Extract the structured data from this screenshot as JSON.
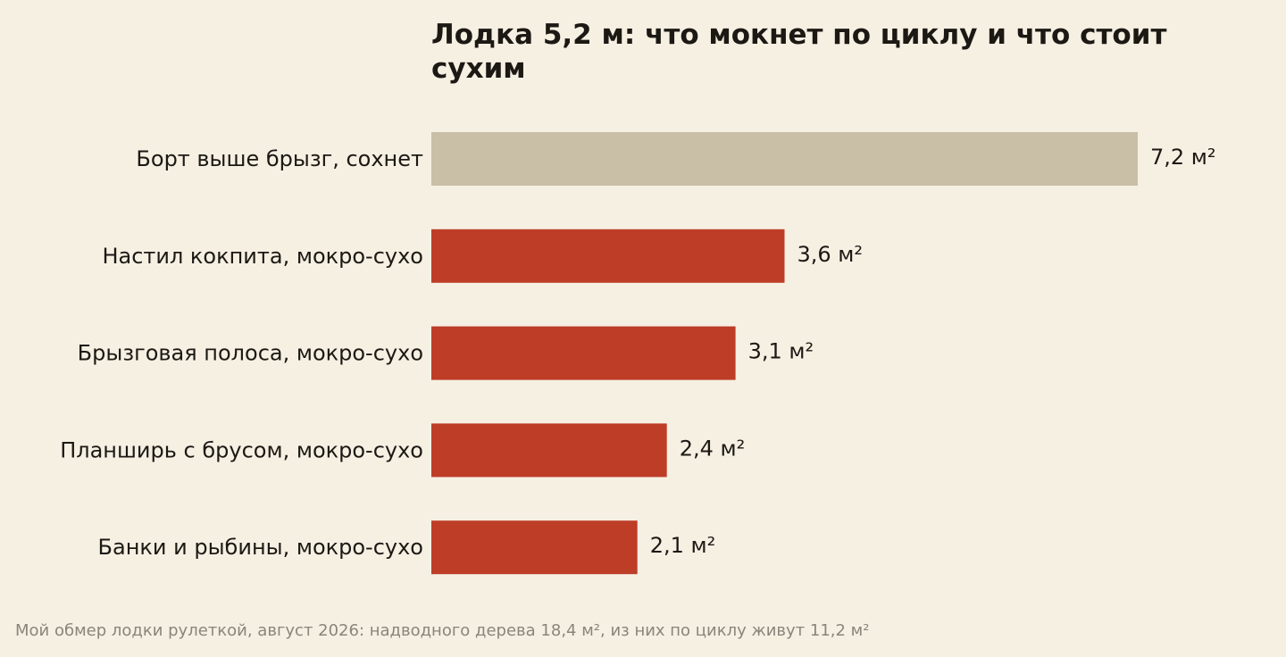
{
  "chart_data": {
    "type": "bar",
    "orientation": "horizontal",
    "title": "Лодка 5,2 м: что мокнет по циклу и что стоит сухим",
    "categories": [
      "Борт выше брызг, сохнет",
      "Настил кокпита, мокро-сухо",
      "Брызговая полоса, мокро-сухо",
      "Планширь с брусом, мокро-сухо",
      "Банки и рыбины, мокро-сухо"
    ],
    "values": [
      7.2,
      3.6,
      3.1,
      2.4,
      2.1
    ],
    "value_labels": [
      "7,2 м²",
      "3,6 м²",
      "3,1 м²",
      "2,4 м²",
      "2,1 м²"
    ],
    "bar_colors": [
      "#c8bfa6",
      "#bd3d27",
      "#bd3d27",
      "#bd3d27",
      "#bd3d27"
    ],
    "xlim": [
      0,
      7.2
    ],
    "grid": false,
    "footnote": "Мой обмер лодки рулеткой, август 2026: надводного дерева 18,4 м², из них по циклу живут 11,2 м²"
  }
}
